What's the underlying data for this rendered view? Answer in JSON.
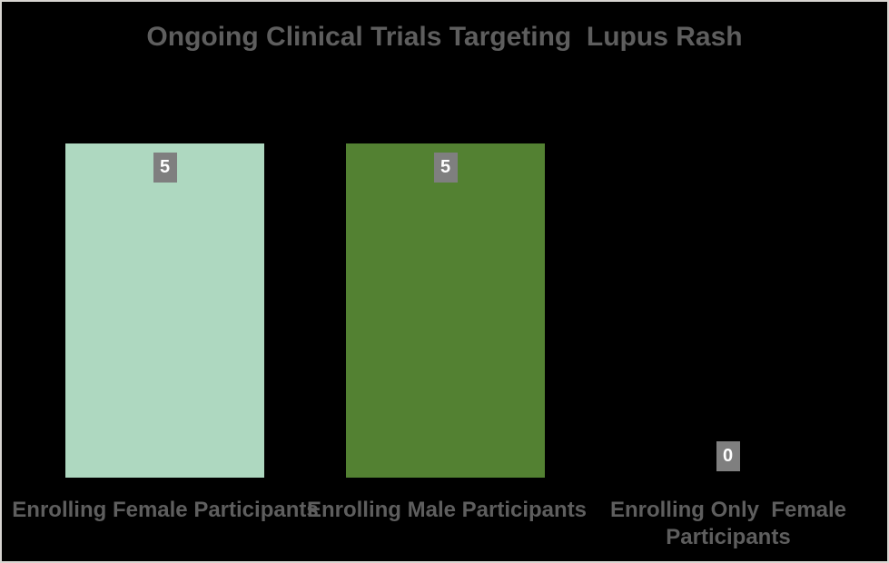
{
  "chart_data": {
    "type": "bar",
    "title": "Ongoing Clinical Trials Targeting  Lupus Rash",
    "categories": [
      "Enrolling Female Participants",
      "Enrolling Male Participants",
      "Enrolling Only  Female\nParticipants"
    ],
    "values": [
      5,
      5,
      0
    ],
    "value_max": 5,
    "bar_colors": [
      "#aed8c0",
      "#538132",
      null
    ],
    "value_label_bg": "#7f7f7f",
    "value_label_color": "#ffffff",
    "text_color": "#5e5e5e",
    "background_color": "#000000",
    "border_color": "#d8d5d1",
    "xlabel": "",
    "ylabel": "",
    "grid": false,
    "legend_visible": false
  }
}
